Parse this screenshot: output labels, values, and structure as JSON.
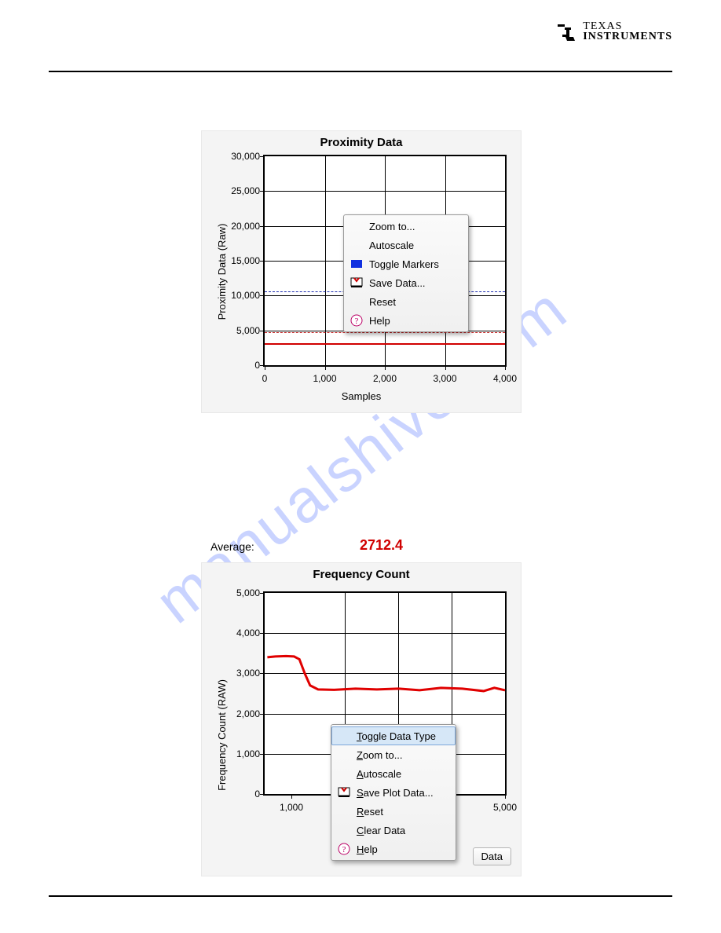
{
  "logo": {
    "line1": "TEXAS",
    "line2": "INSTRUMENTS"
  },
  "watermark": "manualshive.com",
  "chart1": {
    "type": "line",
    "title": "Proximity Data",
    "x_label": "Samples",
    "y_label": "Proximity Data (Raw)",
    "xlim": [
      0,
      4000
    ],
    "ylim": [
      0,
      30000
    ],
    "x_ticks": [
      0,
      1000,
      2000,
      3000,
      4000
    ],
    "x_tick_labels": [
      "0",
      "1,000",
      "2,000",
      "3,000",
      "4,000"
    ],
    "y_ticks": [
      0,
      5000,
      10000,
      15000,
      20000,
      25000,
      30000
    ],
    "y_tick_labels": [
      "0",
      "5,000",
      "10,000",
      "15,000",
      "20,000",
      "25,000",
      "30,000"
    ],
    "grid_color": "#000000",
    "background_color": "#ffffff",
    "panel_color": "#f4f4f4",
    "red_line_y": 3200,
    "red_line_color": "#d00000",
    "dashed_lines": [
      {
        "y": 4700,
        "color": "#c02020"
      },
      {
        "y": 10600,
        "color": "#2030b0"
      }
    ],
    "menu": {
      "items": [
        {
          "label": "Zoom to...",
          "icon": null,
          "hover": false
        },
        {
          "label": "Autoscale",
          "icon": null,
          "hover": false
        },
        {
          "label": "Toggle Markers",
          "icon": "blue-square",
          "hover": false
        },
        {
          "label": "Save Data...",
          "icon": "save",
          "hover": false
        },
        {
          "label": "Reset",
          "icon": null,
          "hover": false
        },
        {
          "label": "Help",
          "icon": "help",
          "hover": false
        }
      ]
    }
  },
  "chart2": {
    "type": "line",
    "average_label": "Average:",
    "average_value": "2712.4",
    "title": "Frequency Count",
    "x_label": "",
    "y_label": "Frequency Count (RAW)",
    "xlim": [
      500,
      5000
    ],
    "ylim": [
      0,
      5000
    ],
    "x_ticks": [
      1000,
      2000,
      3000,
      4000,
      5000
    ],
    "x_tick_labels": [
      "1,000",
      "",
      "",
      "",
      "5,000"
    ],
    "y_ticks": [
      0,
      1000,
      2000,
      3000,
      4000,
      5000
    ],
    "y_tick_labels": [
      "0",
      "1,000",
      "2,000",
      "3,000",
      "4,000",
      "5,000"
    ],
    "grid_color": "#000000",
    "background_color": "#ffffff",
    "panel_color": "#f4f4f4",
    "series_color": "#e00000",
    "series_points": [
      [
        550,
        3400
      ],
      [
        700,
        3420
      ],
      [
        900,
        3430
      ],
      [
        1050,
        3420
      ],
      [
        1150,
        3350
      ],
      [
        1250,
        3000
      ],
      [
        1350,
        2700
      ],
      [
        1500,
        2600
      ],
      [
        1800,
        2590
      ],
      [
        2200,
        2620
      ],
      [
        2600,
        2600
      ],
      [
        3000,
        2620
      ],
      [
        3400,
        2580
      ],
      [
        3800,
        2640
      ],
      [
        4200,
        2620
      ],
      [
        4600,
        2560
      ],
      [
        4800,
        2640
      ],
      [
        5000,
        2580
      ]
    ],
    "menu": {
      "items": [
        {
          "label": "Toggle Data Type",
          "underline_first": "T",
          "icon": null,
          "hover": true
        },
        {
          "label": "Zoom to...",
          "underline_first": "Z",
          "icon": null,
          "hover": false
        },
        {
          "label": "Autoscale",
          "underline_first": "A",
          "icon": null,
          "hover": false
        },
        {
          "label": "Save Plot Data...",
          "underline_first": "S",
          "icon": "save",
          "hover": false
        },
        {
          "label": "Reset",
          "underline_first": "R",
          "icon": null,
          "hover": false
        },
        {
          "label": "Clear Data",
          "underline_first": "C",
          "icon": null,
          "hover": false
        },
        {
          "label": "Help",
          "underline_first": "H",
          "icon": "help",
          "hover": false
        }
      ]
    },
    "data_button": "Data"
  }
}
